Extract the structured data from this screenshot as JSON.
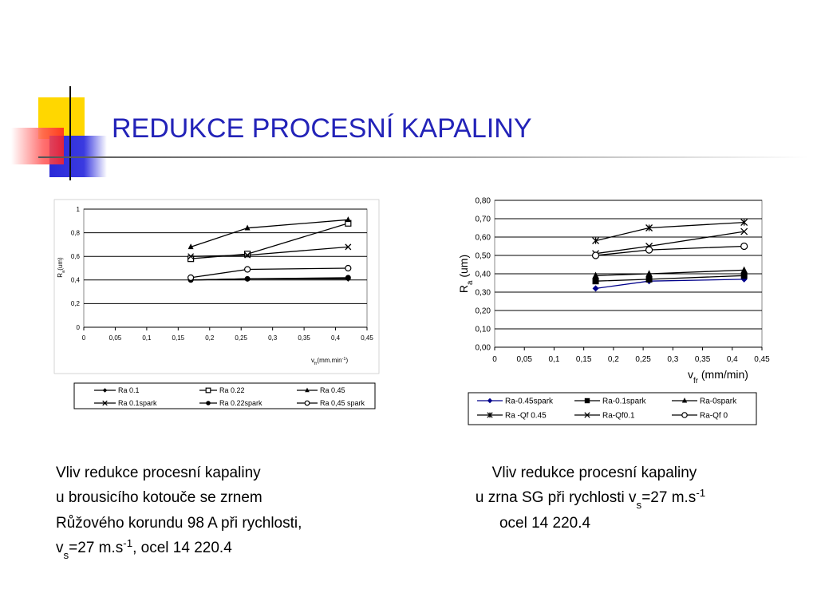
{
  "title": "REDUKCE PROCESNÍ KAPALINY",
  "chart_data": [
    {
      "type": "line",
      "x": [
        0.17,
        0.26,
        0.42
      ],
      "xlim": [
        0,
        0.45
      ],
      "xticks": [
        0,
        {
          "value": 0.05,
          "label": "0,05"
        },
        {
          "value": 0.1,
          "label": "0,1"
        },
        {
          "value": 0.15,
          "label": "0,15"
        },
        {
          "value": 0.2,
          "label": "0,2"
        },
        {
          "value": 0.25,
          "label": "0,25"
        },
        {
          "value": 0.3,
          "label": "0,3"
        },
        {
          "value": 0.35,
          "label": "0,35"
        },
        {
          "value": 0.4,
          "label": "0,4"
        },
        {
          "value": 0.45,
          "label": "0,45"
        }
      ],
      "ylim": [
        0,
        1
      ],
      "yticks": [
        0,
        {
          "value": 0.2,
          "label": "0,2"
        },
        {
          "value": 0.4,
          "label": "0,4"
        },
        {
          "value": 0.6,
          "label": "0,6"
        },
        {
          "value": 0.8,
          "label": "0,8"
        },
        1
      ],
      "grid": true,
      "x_label": [
        "v",
        {
          "sub": "fr"
        },
        "(mm.min",
        {
          "sup": "-1"
        },
        ")"
      ],
      "y_label": [
        "R",
        {
          "sub": "a"
        },
        "(um)"
      ],
      "series": [
        {
          "name": "Ra 0.1",
          "color": "#000000",
          "marker": "diamond",
          "values": [
            0.4,
            0.41,
            0.41
          ]
        },
        {
          "name": "Ra 0.22",
          "color": "#000000",
          "marker": "square-open",
          "values": [
            0.58,
            0.62,
            0.88
          ]
        },
        {
          "name": "Ra 0.45",
          "color": "#000000",
          "marker": "triangle",
          "values": [
            0.68,
            0.84,
            0.91
          ]
        },
        {
          "name": "Ra 0.1spark",
          "color": "#000000",
          "marker": "x",
          "values": [
            0.6,
            0.61,
            0.68
          ]
        },
        {
          "name": "Ra 0.22spark",
          "color": "#000000",
          "marker": "circle",
          "values": [
            0.4,
            0.41,
            0.42
          ]
        },
        {
          "name": "Ra 0,45 spark",
          "color": "#000000",
          "marker": "circle-open",
          "values": [
            0.42,
            0.49,
            0.5
          ]
        }
      ]
    },
    {
      "type": "line",
      "x": [
        0.17,
        0.26,
        0.42
      ],
      "xlim": [
        0,
        0.45
      ],
      "xticks": [
        0,
        {
          "value": 0.05,
          "label": "0,05"
        },
        {
          "value": 0.1,
          "label": "0,1"
        },
        {
          "value": 0.15,
          "label": "0,15"
        },
        {
          "value": 0.2,
          "label": "0,2"
        },
        {
          "value": 0.25,
          "label": "0,25"
        },
        {
          "value": 0.3,
          "label": "0,3"
        },
        {
          "value": 0.35,
          "label": "0,35"
        },
        {
          "value": 0.4,
          "label": "0,4"
        },
        {
          "value": 0.45,
          "label": "0,45"
        }
      ],
      "ylim": [
        0,
        0.8
      ],
      "yticks": [
        {
          "value": 0,
          "label": "0,00"
        },
        {
          "value": 0.1,
          "label": "0,10"
        },
        {
          "value": 0.2,
          "label": "0,20"
        },
        {
          "value": 0.3,
          "label": "0,30"
        },
        {
          "value": 0.4,
          "label": "0,40"
        },
        {
          "value": 0.5,
          "label": "0,50"
        },
        {
          "value": 0.6,
          "label": "0,60"
        },
        {
          "value": 0.7,
          "label": "0,70"
        },
        {
          "value": 0.8,
          "label": "0,80"
        }
      ],
      "grid": true,
      "x_label": [
        "v",
        {
          "sub": "fr"
        },
        " (mm/min)"
      ],
      "y_label": [
        "R",
        {
          "sub": "a"
        },
        " (um)"
      ],
      "series": [
        {
          "name": "Ra-0.45spark",
          "color": "#00008b",
          "marker": "diamond",
          "values": [
            0.32,
            0.36,
            0.37
          ]
        },
        {
          "name": "Ra-0.1spark",
          "color": "#000000",
          "marker": "square",
          "values": [
            0.36,
            0.37,
            0.39
          ]
        },
        {
          "name": "Ra-0spark",
          "color": "#000000",
          "marker": "triangle",
          "values": [
            0.39,
            0.4,
            0.42
          ]
        },
        {
          "name": "Ra -Qf 0.45",
          "color": "#000000",
          "marker": "asterisk",
          "values": [
            0.58,
            0.65,
            0.68
          ]
        },
        {
          "name": "Ra-Qf0.1",
          "color": "#000000",
          "marker": "x",
          "values": [
            0.51,
            0.55,
            0.63
          ]
        },
        {
          "name": "Ra-Qf 0",
          "color": "#000000",
          "marker": "circle-open",
          "values": [
            0.5,
            0.53,
            0.55
          ]
        }
      ]
    }
  ],
  "captions": [
    {
      "lines": [
        [
          "Vliv redukce procesní kapaliny"
        ],
        [
          "u brousicího kotouče se zrnem"
        ],
        [
          "Růžového korundu 98 A při rychlosti,"
        ],
        [
          "v",
          {
            "sub": "s"
          },
          "=27 m.s",
          {
            "sup": "-1"
          },
          ",  ocel 14 220.4"
        ]
      ]
    },
    {
      "lines": [
        [
          "Vliv redukce procesní kapaliny"
        ],
        [
          "u zrna SG při rychlosti v",
          {
            "sub": "s"
          },
          "=27 m.s",
          {
            "sup": "-1"
          }
        ],
        [
          "ocel 14 220.4"
        ]
      ]
    }
  ]
}
